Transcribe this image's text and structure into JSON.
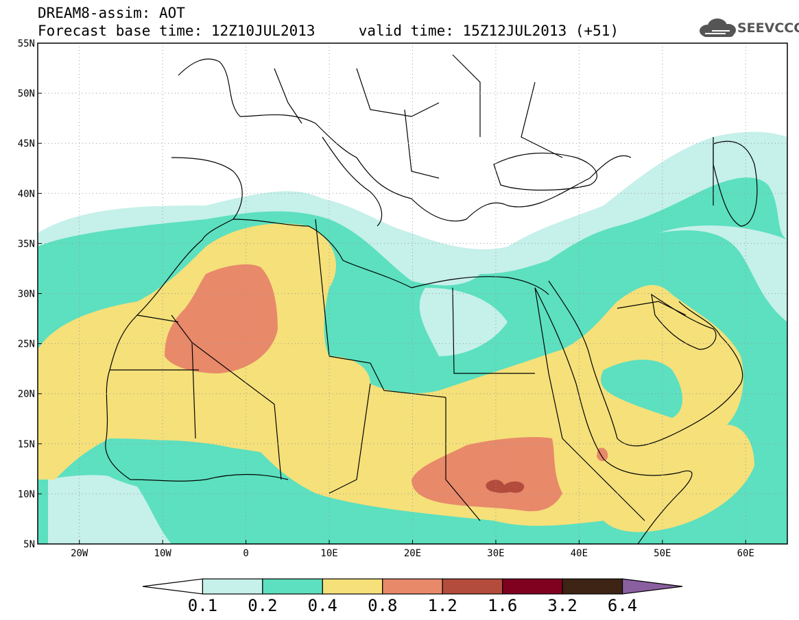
{
  "header": {
    "title": "DREAM8-assim: AOT",
    "subtitle": "Forecast base time: 12Z10JUL2013     valid time: 15Z12JUL2013 (+51)"
  },
  "logo": {
    "text": "SEEVCCC",
    "icon": "cloud-icon"
  },
  "map": {
    "region": {
      "lon_min": -25,
      "lon_max": 65,
      "lat_min": 5,
      "lat_max": 55
    },
    "lat_ticks": [
      "5N",
      "10N",
      "15N",
      "20N",
      "25N",
      "30N",
      "35N",
      "40N",
      "45N",
      "50N",
      "55N"
    ],
    "lon_ticks": [
      "20W",
      "10W",
      "0",
      "10E",
      "20E",
      "30E",
      "40E",
      "50E",
      "60E"
    ],
    "lat_values": [
      5,
      10,
      15,
      20,
      25,
      30,
      35,
      40,
      45,
      50,
      55
    ],
    "lon_values": [
      -20,
      -10,
      0,
      10,
      20,
      30,
      40,
      50,
      60
    ],
    "grid": "dotted"
  },
  "colorbar": {
    "levels": [
      "0.1",
      "0.2",
      "0.4",
      "0.8",
      "1.2",
      "1.6",
      "3.2",
      "6.4"
    ],
    "colors": [
      "#ffffff",
      "#c6f0ea",
      "#5ce0bf",
      "#f5e07a",
      "#e8896a",
      "#b34c3c",
      "#800020",
      "#3d2414",
      "#8a5fa0"
    ]
  }
}
